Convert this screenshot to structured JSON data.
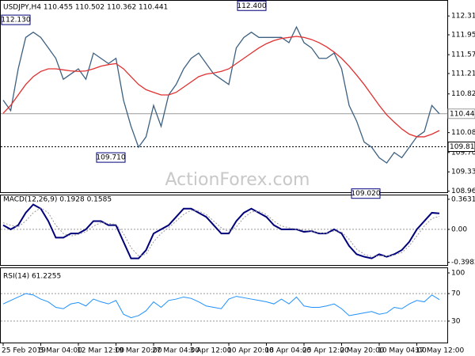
{
  "chart_data": [
    {
      "type": "line",
      "title": "USDJPY,H4 110.455 110.502 110.362 110.441",
      "watermark": "ActionForex.com",
      "ylim": [
        108.94,
        112.54
      ],
      "yticks": [
        {
          "value": 112.31,
          "label": "112.310"
        },
        {
          "value": 111.95,
          "label": "111.950"
        },
        {
          "value": 111.57,
          "label": "111.570"
        },
        {
          "value": 111.21,
          "label": "111.210"
        },
        {
          "value": 110.82,
          "label": "110.820"
        },
        {
          "value": 110.08,
          "label": "110.080"
        },
        {
          "value": 109.7,
          "label": "109.700"
        },
        {
          "value": 109.33,
          "label": "109.330"
        },
        {
          "value": 108.96,
          "label": "108.960"
        }
      ],
      "hlines": [
        {
          "value": 110.441,
          "label": "110.441",
          "color": "#999999"
        },
        {
          "value": 109.81,
          "label": "109.810",
          "color": "#000000"
        }
      ],
      "annotations": [
        {
          "value": 112.13,
          "label": "112.130"
        },
        {
          "value": 109.71,
          "label": "109.710"
        },
        {
          "value": 112.4,
          "label": "112.400"
        },
        {
          "value": 109.02,
          "label": "109.020"
        }
      ],
      "series": [
        {
          "color": "#3d6080",
          "values": [
            110.7,
            110.5,
            111.3,
            111.9,
            112.0,
            111.9,
            111.7,
            111.5,
            111.1,
            111.2,
            111.3,
            111.1,
            111.6,
            111.5,
            111.4,
            111.5,
            110.7,
            110.2,
            109.8,
            110.0,
            110.6,
            110.2,
            110.8,
            111.0,
            111.3,
            111.5,
            111.6,
            111.4,
            111.2,
            111.1,
            111.0,
            111.7,
            111.9,
            112.0,
            111.9,
            111.9,
            111.9,
            111.9,
            111.8,
            112.1,
            111.8,
            111.7,
            111.5,
            111.5,
            111.6,
            111.3,
            110.6,
            110.3,
            109.9,
            109.8,
            109.6,
            109.5,
            109.7,
            109.6,
            109.8,
            110.0,
            110.1,
            110.6,
            110.441
          ]
        },
        {
          "color": "#e03030",
          "values": [
            110.45,
            110.6,
            110.8,
            111.0,
            111.15,
            111.25,
            111.3,
            111.3,
            111.28,
            111.26,
            111.25,
            111.26,
            111.3,
            111.35,
            111.38,
            111.4,
            111.3,
            111.15,
            111.0,
            110.9,
            110.85,
            110.8,
            110.8,
            110.85,
            110.95,
            111.05,
            111.15,
            111.2,
            111.22,
            111.25,
            111.3,
            111.4,
            111.5,
            111.6,
            111.7,
            111.78,
            111.84,
            111.88,
            111.9,
            111.92,
            111.9,
            111.86,
            111.8,
            111.72,
            111.62,
            111.5,
            111.35,
            111.18,
            111.0,
            110.8,
            110.6,
            110.42,
            110.28,
            110.15,
            110.05,
            110.0,
            110.0,
            110.05,
            110.12
          ]
        }
      ]
    },
    {
      "type": "line",
      "title": "MACD(12,26,9) 0.1928 0.1585",
      "ylim": [
        -0.43,
        0.4
      ],
      "yticks": [
        0.3631,
        {
          "value": 0,
          "label": "0.00"
        },
        -0.3982
      ],
      "series": [
        {
          "color": "#00007a",
          "width": 2,
          "values": [
            0.05,
            0.0,
            0.05,
            0.2,
            0.3,
            0.25,
            0.1,
            -0.1,
            -0.1,
            -0.05,
            -0.05,
            0.0,
            0.1,
            0.1,
            0.05,
            0.05,
            -0.15,
            -0.35,
            -0.35,
            -0.25,
            -0.05,
            0.0,
            0.05,
            0.15,
            0.25,
            0.25,
            0.2,
            0.15,
            0.05,
            -0.05,
            -0.05,
            0.1,
            0.2,
            0.25,
            0.2,
            0.15,
            0.05,
            0.0,
            0.0,
            0.0,
            -0.03,
            -0.02,
            -0.05,
            -0.05,
            0.0,
            -0.05,
            -0.2,
            -0.3,
            -0.33,
            -0.35,
            -0.3,
            -0.33,
            -0.3,
            -0.25,
            -0.15,
            0.0,
            0.1,
            0.2,
            0.1928
          ]
        },
        {
          "color": "#999999",
          "width": 1,
          "dash": true,
          "values": [
            0.08,
            0.05,
            0.03,
            0.1,
            0.2,
            0.26,
            0.2,
            0.05,
            -0.05,
            -0.08,
            -0.06,
            -0.03,
            0.04,
            0.08,
            0.07,
            0.06,
            -0.05,
            -0.22,
            -0.32,
            -0.3,
            -0.15,
            -0.05,
            0.02,
            0.1,
            0.18,
            0.23,
            0.22,
            0.18,
            0.1,
            0.02,
            -0.03,
            0.03,
            0.14,
            0.21,
            0.22,
            0.18,
            0.1,
            0.04,
            0.02,
            0.0,
            -0.01,
            -0.02,
            -0.04,
            -0.05,
            -0.02,
            -0.03,
            -0.12,
            -0.24,
            -0.3,
            -0.33,
            -0.32,
            -0.32,
            -0.31,
            -0.28,
            -0.2,
            -0.08,
            0.04,
            0.13,
            0.1585
          ]
        }
      ]
    },
    {
      "type": "line",
      "title": "RSI(14) 61.2255",
      "ylim": [
        0,
        100
      ],
      "yticks": [
        100,
        70,
        30
      ],
      "levels": [
        70,
        30
      ],
      "categories": [
        "25 Feb 2019",
        null,
        null,
        null,
        null,
        "5 Mar 04:00",
        null,
        null,
        null,
        null,
        "12 Mar 12:00",
        null,
        null,
        null,
        null,
        "19 Mar 20:00",
        null,
        null,
        null,
        null,
        "27 Mar 04:00",
        null,
        null,
        null,
        null,
        "3 Apr 12:00",
        null,
        null,
        null,
        null,
        "10 Apr 20:00",
        null,
        null,
        null,
        null,
        "18 Apr 04:00",
        null,
        null,
        null,
        null,
        "25 Apr 12:00",
        null,
        null,
        null,
        null,
        "2 May 20:00",
        null,
        null,
        null,
        null,
        "10 May 04:00",
        null,
        null,
        null,
        null,
        "17 May 12:00",
        null,
        null,
        null
      ],
      "series": [
        {
          "color": "#1e90ff",
          "width": 1,
          "values": [
            55,
            60,
            65,
            70,
            68,
            62,
            58,
            50,
            48,
            55,
            57,
            52,
            62,
            58,
            55,
            60,
            40,
            35,
            38,
            45,
            58,
            50,
            60,
            62,
            65,
            63,
            58,
            52,
            50,
            48,
            62,
            66,
            64,
            62,
            60,
            58,
            55,
            62,
            55,
            65,
            52,
            50,
            50,
            52,
            55,
            48,
            38,
            40,
            42,
            44,
            40,
            42,
            50,
            48,
            55,
            60,
            58,
            68,
            61.2255
          ]
        }
      ]
    }
  ]
}
